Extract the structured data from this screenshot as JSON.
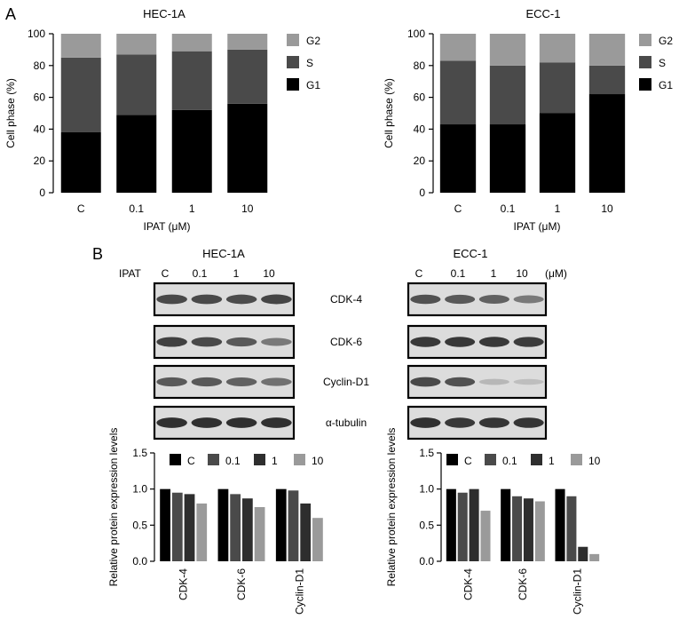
{
  "panel_labels": [
    "A",
    "B"
  ],
  "chart_data": [
    {
      "type": "bar",
      "stacked": true,
      "title": "HEC-1A",
      "xlabel": "IPAT (μM)",
      "ylabel": "Cell phase (%)",
      "categories": [
        "C",
        "0.1",
        "1",
        "10"
      ],
      "ylim": [
        0,
        100
      ],
      "yticks": [
        "0",
        "20",
        "40",
        "60",
        "80",
        "100"
      ],
      "legend_position": "right",
      "series": [
        {
          "name": "G1",
          "color": "#000000",
          "values": [
            38,
            49,
            52,
            56
          ]
        },
        {
          "name": "S",
          "color": "#4a4a4a",
          "values": [
            47,
            38,
            37,
            34
          ]
        },
        {
          "name": "G2",
          "color": "#9a9a9a",
          "values": [
            15,
            13,
            11,
            10
          ]
        }
      ]
    },
    {
      "type": "bar",
      "stacked": true,
      "title": "ECC-1",
      "xlabel": "IPAT (μM)",
      "ylabel": "Cell phase (%)",
      "categories": [
        "C",
        "0.1",
        "1",
        "10"
      ],
      "ylim": [
        0,
        100
      ],
      "yticks": [
        "0",
        "20",
        "40",
        "60",
        "80",
        "100"
      ],
      "legend_position": "right",
      "series": [
        {
          "name": "G1",
          "color": "#000000",
          "values": [
            43,
            43,
            50,
            62
          ]
        },
        {
          "name": "S",
          "color": "#4a4a4a",
          "values": [
            40,
            37,
            32,
            18
          ]
        },
        {
          "name": "G2",
          "color": "#9a9a9a",
          "values": [
            17,
            20,
            18,
            20
          ]
        }
      ]
    },
    {
      "type": "bar",
      "ylabel": "Relative protein expression levels",
      "categories": [
        "CDK-4",
        "CDK-6",
        "Cyclin-D1"
      ],
      "ylim": [
        0,
        1.5
      ],
      "yticks": [
        "0.0",
        "0.5",
        "1.0",
        "1.5"
      ],
      "legend_position": "top",
      "series": [
        {
          "name": "C",
          "color": "#000000",
          "values": [
            1.0,
            1.0,
            1.0
          ]
        },
        {
          "name": "0.1",
          "color": "#4a4a4a",
          "values": [
            0.95,
            0.93,
            0.98
          ]
        },
        {
          "name": "1",
          "color": "#2e2e2e",
          "values": [
            0.93,
            0.87,
            0.8
          ]
        },
        {
          "name": "10",
          "color": "#9a9a9a",
          "values": [
            0.8,
            0.75,
            0.6
          ]
        }
      ]
    },
    {
      "type": "bar",
      "ylabel": "Relative protein expression levels",
      "categories": [
        "CDK-4",
        "CDK-6",
        "Cyclin-D1"
      ],
      "ylim": [
        0,
        1.5
      ],
      "yticks": [
        "0.0",
        "0.5",
        "1.0",
        "1.5"
      ],
      "legend_position": "top",
      "series": [
        {
          "name": "C",
          "color": "#000000",
          "values": [
            1.0,
            1.0,
            1.0
          ]
        },
        {
          "name": "0.1",
          "color": "#4a4a4a",
          "values": [
            0.95,
            0.9,
            0.9
          ]
        },
        {
          "name": "1",
          "color": "#2e2e2e",
          "values": [
            1.0,
            0.87,
            0.2
          ]
        },
        {
          "name": "10",
          "color": "#9a9a9a",
          "values": [
            0.7,
            0.83,
            0.1
          ]
        }
      ]
    }
  ],
  "blots": [
    {
      "title": "HEC-1A",
      "treatment_label": "IPAT",
      "lanes": [
        "C",
        "0.1",
        "1",
        "10"
      ],
      "unit": "",
      "rows": [
        {
          "label": "CDK-4",
          "intensity": [
            0.8,
            0.8,
            0.78,
            0.82
          ]
        },
        {
          "label": "CDK-6",
          "intensity": [
            0.85,
            0.8,
            0.7,
            0.5
          ]
        },
        {
          "label": "Cyclin-D1",
          "intensity": [
            0.7,
            0.7,
            0.65,
            0.55
          ]
        },
        {
          "label": "α-tubulin",
          "intensity": [
            0.95,
            0.95,
            0.95,
            0.95
          ]
        }
      ]
    },
    {
      "title": "ECC-1",
      "treatment_label": "",
      "lanes": [
        "C",
        "0.1",
        "1",
        "10"
      ],
      "unit": "(μM)",
      "rows": [
        {
          "label": "CDK-4",
          "intensity": [
            0.75,
            0.7,
            0.65,
            0.5
          ]
        },
        {
          "label": "CDK-6",
          "intensity": [
            0.9,
            0.9,
            0.9,
            0.88
          ]
        },
        {
          "label": "Cyclin-D1",
          "intensity": [
            0.8,
            0.75,
            0.12,
            0.08
          ]
        },
        {
          "label": "α-tubulin",
          "intensity": [
            0.95,
            0.9,
            0.92,
            0.92
          ]
        }
      ]
    }
  ]
}
